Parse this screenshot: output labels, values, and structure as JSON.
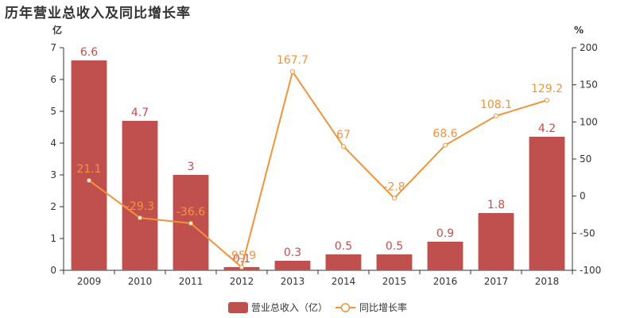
{
  "title": "历年营业总收入及同比增长率",
  "chart_data": {
    "type": "bar",
    "categories": [
      "2009",
      "2010",
      "2011",
      "2012",
      "2013",
      "2014",
      "2015",
      "2016",
      "2017",
      "2018"
    ],
    "series": [
      {
        "name": "营业总收入（亿）",
        "type": "bar",
        "axis": "left",
        "color": "#c0504d",
        "values": [
          6.6,
          4.7,
          3,
          0.1,
          0.3,
          0.5,
          0.5,
          0.9,
          1.8,
          4.2
        ]
      },
      {
        "name": "同比增长率",
        "type": "line",
        "axis": "right",
        "color": "#f0943b",
        "values": [
          21.1,
          -29.3,
          -36.6,
          -95.9,
          167.7,
          67,
          -2.8,
          68.6,
          108.1,
          129.2
        ],
        "labels": [
          "21.1",
          "-29.3",
          "-36.6",
          "-95.9",
          "167.7",
          "67",
          "-2.8",
          "68.6",
          "108.1",
          "129.2"
        ]
      }
    ],
    "y_left": {
      "unit": "亿",
      "min": 0,
      "max": 7,
      "ticks": [
        0,
        1,
        2,
        3,
        4,
        5,
        6,
        7
      ]
    },
    "y_right": {
      "unit": "%",
      "min": -100,
      "max": 200,
      "ticks": [
        -100,
        -50,
        0,
        50,
        100,
        150,
        200
      ]
    },
    "grid": false,
    "legend_position": "bottom-center"
  }
}
